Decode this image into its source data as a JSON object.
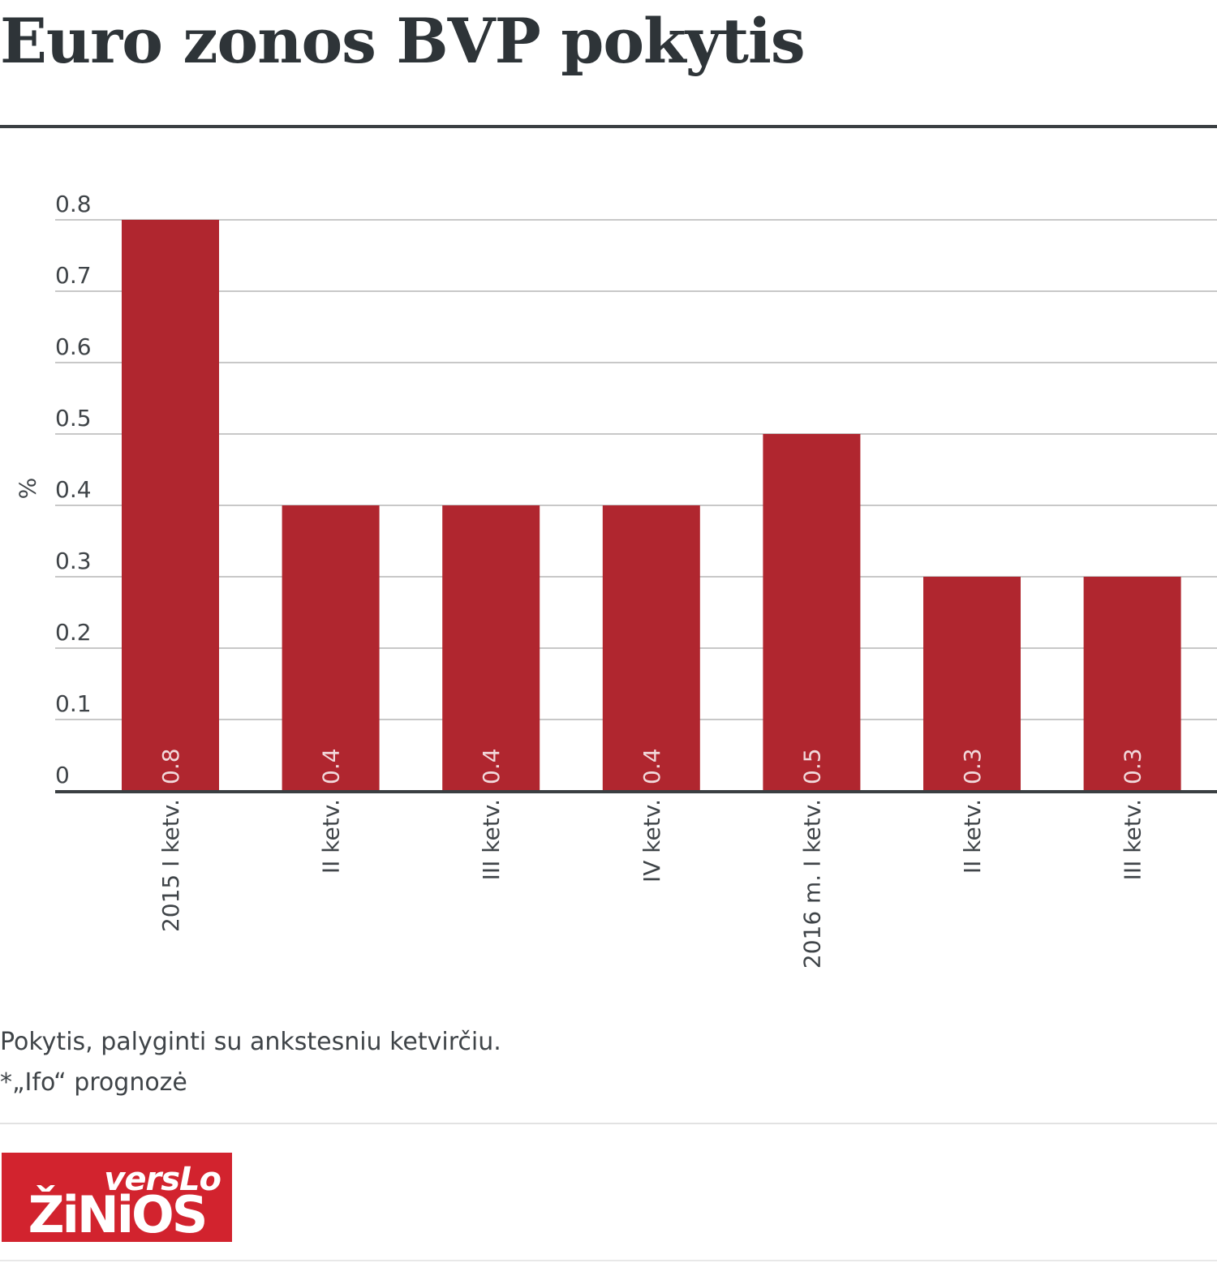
{
  "header": {
    "title": "Euro zonos BVP pokytis"
  },
  "chart_data": {
    "type": "bar",
    "categories": [
      "2015 I ketv.",
      "II ketv.",
      "III ketv.",
      "IV ketv.",
      "2016 m. I ketv.",
      "II ketv.",
      "III ketv."
    ],
    "values": [
      0.8,
      0.4,
      0.4,
      0.4,
      0.5,
      0.3,
      0.3
    ],
    "value_labels": [
      "0.8",
      "0.4",
      "0.4",
      "0.4",
      "0.5",
      "0.3",
      "0.3"
    ],
    "title": "Euro zonos BVP pokytis",
    "xlabel": "",
    "ylabel": "%",
    "ylim": [
      0,
      0.8
    ],
    "yticks": [
      "0",
      "0.1",
      "0.2",
      "0.3",
      "0.4",
      "0.5",
      "0.6",
      "0.7",
      "0.8"
    ],
    "grid": true,
    "bar_color": "#b0262f"
  },
  "footer": {
    "note": "Pokytis, palyginti su ankstesniu ketvirčiu.",
    "source": "*„Ifo“ prognozė"
  },
  "logo": {
    "line1": "versLo",
    "line2": "ŽiNiOS",
    "color": "#d2232e"
  }
}
